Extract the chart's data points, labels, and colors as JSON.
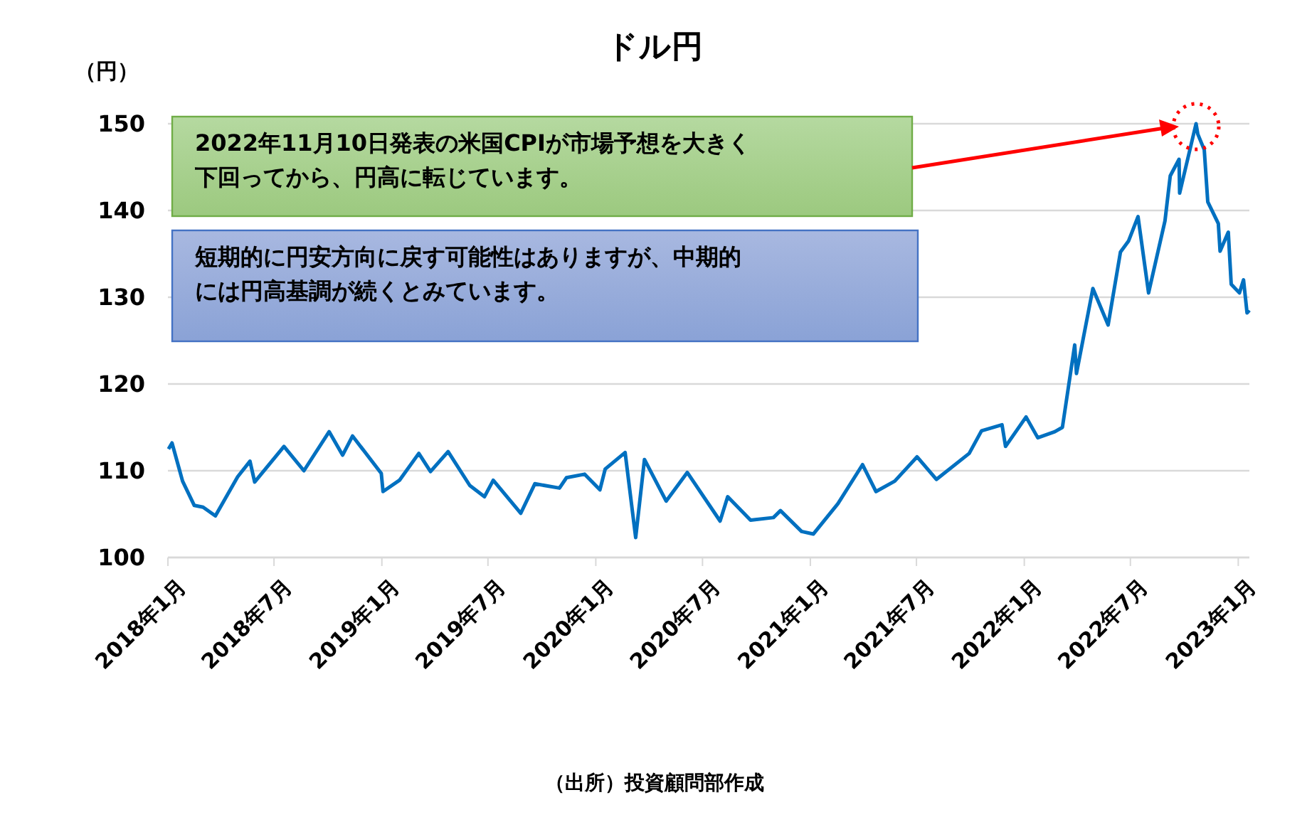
{
  "chart_data": {
    "type": "line",
    "title": "ドル円",
    "ylabel": "（円）",
    "annotations": [
      "2022年11月10日発表の米国CPIが市場予想を大きく下回ってから、円高に転じています。",
      "短期的に円安方向に戻す可能性はありますが、中期的には円高基調が続くとみています。",
      "（出所）投資顧問部作成"
    ],
    "x": [
      "2018-01-02",
      "2018-01-08",
      "2018-01-26",
      "2018-02-15",
      "2018-03-02",
      "2018-03-23",
      "2018-04-30",
      "2018-05-21",
      "2018-05-29",
      "2018-07-18",
      "2018-08-21",
      "2018-10-03",
      "2018-10-26",
      "2018-11-12",
      "2018-12-31",
      "2019-01-03",
      "2019-01-31",
      "2019-03-05",
      "2019-03-25",
      "2019-04-24",
      "2019-05-31",
      "2019-06-25",
      "2019-07-10",
      "2019-08-26",
      "2019-09-19",
      "2019-10-31",
      "2019-11-12",
      "2019-12-13",
      "2020-01-08",
      "2020-01-17",
      "2020-02-20",
      "2020-03-09",
      "2020-03-24",
      "2020-04-30",
      "2020-06-05",
      "2020-07-31",
      "2020-08-13",
      "2020-09-21",
      "2020-10-30",
      "2020-11-11",
      "2020-12-17",
      "2021-01-06",
      "2021-02-17",
      "2021-03-31",
      "2021-04-23",
      "2021-05-25",
      "2021-07-02",
      "2021-08-04",
      "2021-09-29",
      "2021-10-20",
      "2021-11-24",
      "2021-11-30",
      "2022-01-04",
      "2022-01-24",
      "2022-02-22",
      "2022-03-07",
      "2022-03-28",
      "2022-03-31",
      "2022-04-28",
      "2022-05-24",
      "2022-06-14",
      "2022-06-28",
      "2022-07-14",
      "2022-08-01",
      "2022-08-29",
      "2022-09-07",
      "2022-09-22",
      "2022-09-23",
      "2022-10-21",
      "2022-10-24",
      "2022-11-04",
      "2022-11-10",
      "2022-11-28",
      "2022-12-01",
      "2022-12-15",
      "2022-12-20",
      "2023-01-03",
      "2023-01-10",
      "2023-01-16",
      "2023-01-20"
    ],
    "series": [
      {
        "color": "#0070c0",
        "values": [
          112.5,
          113.2,
          108.8,
          106.0,
          105.8,
          104.8,
          109.3,
          111.1,
          108.7,
          112.8,
          110.0,
          114.5,
          111.8,
          114.0,
          109.7,
          107.6,
          108.9,
          112.0,
          109.9,
          112.2,
          108.3,
          107.0,
          108.9,
          105.1,
          108.5,
          108.0,
          109.2,
          109.6,
          107.8,
          110.2,
          112.1,
          102.3,
          111.3,
          106.5,
          109.8,
          104.2,
          107.0,
          104.3,
          104.6,
          105.4,
          103.0,
          102.7,
          106.2,
          110.7,
          107.6,
          108.8,
          111.6,
          109.0,
          112.0,
          114.6,
          115.3,
          112.8,
          116.2,
          113.8,
          114.5,
          115.0,
          124.5,
          121.2,
          131.0,
          126.8,
          135.2,
          136.5,
          139.3,
          130.5,
          138.8,
          144.0,
          145.9,
          142.0,
          150.0,
          148.8,
          147.0,
          141.0,
          138.5,
          135.3,
          137.5,
          131.5,
          130.5,
          132.0,
          128.2,
          128.5
        ]
      }
    ],
    "xlim": [
      "2018-01-01",
      "2023-01-20"
    ],
    "xticks": [
      {
        "value": "2018-01-01",
        "label": "2018年1月"
      },
      {
        "value": "2018-07-01",
        "label": "2018年7月"
      },
      {
        "value": "2019-01-01",
        "label": "2019年1月"
      },
      {
        "value": "2019-07-01",
        "label": "2019年7月"
      },
      {
        "value": "2020-01-01",
        "label": "2020年1月"
      },
      {
        "value": "2020-07-01",
        "label": "2020年7月"
      },
      {
        "value": "2021-01-01",
        "label": "2021年1月"
      },
      {
        "value": "2021-07-01",
        "label": "2021年7月"
      },
      {
        "value": "2022-01-01",
        "label": "2022年1月"
      },
      {
        "value": "2022-07-01",
        "label": "2022年7月"
      },
      {
        "value": "2023-01-01",
        "label": "2023年1月"
      }
    ],
    "ylim": [
      100,
      150
    ],
    "yticks": [
      100,
      110,
      120,
      130,
      140,
      150
    ],
    "grid": "y",
    "marker": "none",
    "line_style": "solid"
  }
}
